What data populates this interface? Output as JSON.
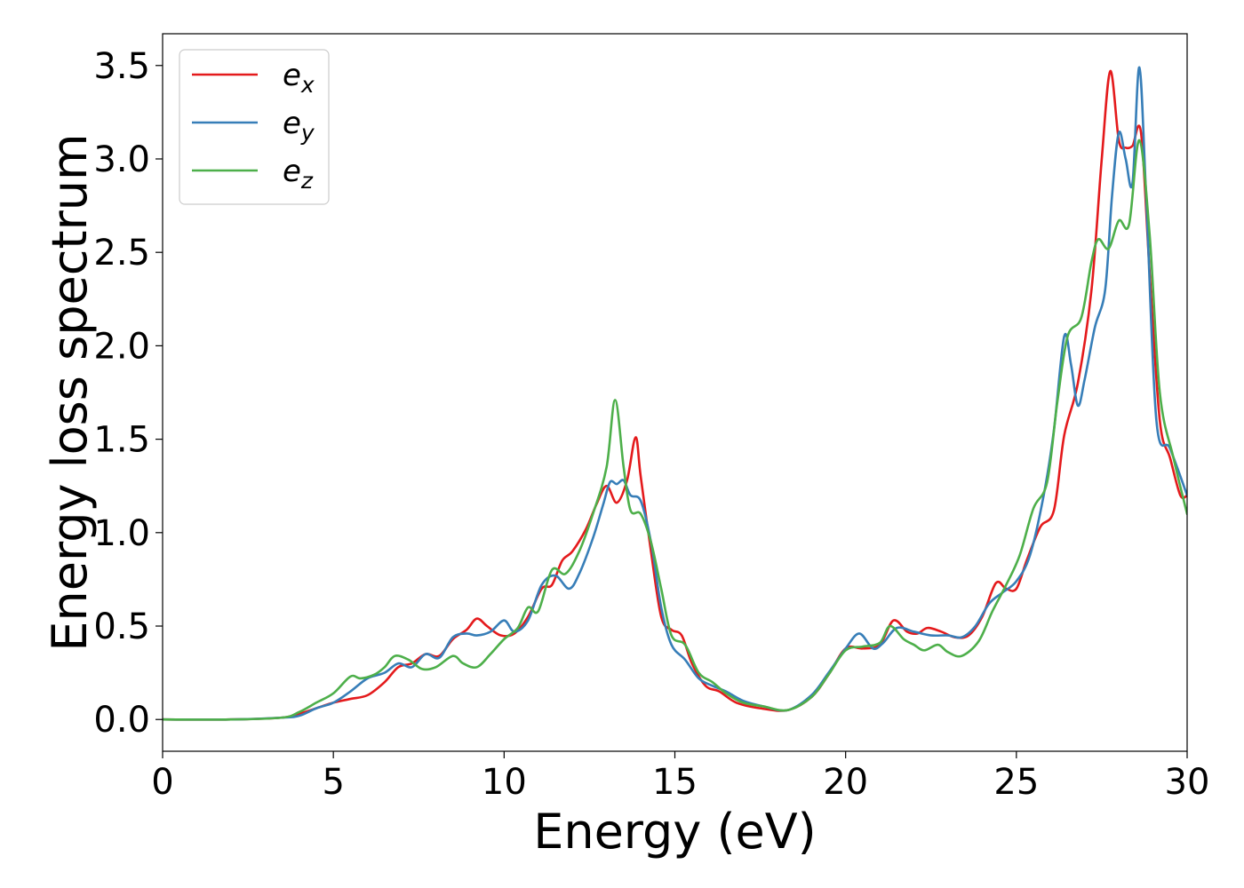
{
  "chart_data": {
    "type": "line",
    "title": "",
    "xlabel": "Energy (eV)",
    "ylabel": "Energy loss spectrum",
    "xlim": [
      0,
      30
    ],
    "ylim": [
      -0.17,
      3.67
    ],
    "xticks": [
      {
        "value": 0,
        "label": "0"
      },
      {
        "value": 5,
        "label": "5"
      },
      {
        "value": 10,
        "label": "10"
      },
      {
        "value": 15,
        "label": "15"
      },
      {
        "value": 20,
        "label": "20"
      },
      {
        "value": 25,
        "label": "25"
      },
      {
        "value": 30,
        "label": "30"
      }
    ],
    "yticks": [
      {
        "value": 0.0,
        "label": "0.0"
      },
      {
        "value": 0.5,
        "label": "0.5"
      },
      {
        "value": 1.0,
        "label": "1.0"
      },
      {
        "value": 1.5,
        "label": "1.5"
      },
      {
        "value": 2.0,
        "label": "2.0"
      },
      {
        "value": 2.5,
        "label": "2.5"
      },
      {
        "value": 3.0,
        "label": "3.0"
      },
      {
        "value": 3.5,
        "label": "3.5"
      }
    ],
    "grid": false,
    "legend_position": "top-left",
    "series": [
      {
        "name_base": "e",
        "name_sub": "x",
        "color": "#e41a1c",
        "points": [
          [
            0,
            0.0
          ],
          [
            2,
            0.0
          ],
          [
            3.5,
            0.01
          ],
          [
            4.0,
            0.03
          ],
          [
            4.5,
            0.06
          ],
          [
            5.0,
            0.09
          ],
          [
            5.5,
            0.11
          ],
          [
            6.0,
            0.13
          ],
          [
            6.5,
            0.2
          ],
          [
            6.9,
            0.28
          ],
          [
            7.3,
            0.3
          ],
          [
            7.7,
            0.35
          ],
          [
            8.1,
            0.34
          ],
          [
            8.5,
            0.43
          ],
          [
            8.9,
            0.48
          ],
          [
            9.2,
            0.54
          ],
          [
            9.5,
            0.5
          ],
          [
            9.9,
            0.45
          ],
          [
            10.3,
            0.46
          ],
          [
            10.7,
            0.55
          ],
          [
            11.1,
            0.7
          ],
          [
            11.4,
            0.72
          ],
          [
            11.7,
            0.85
          ],
          [
            12.0,
            0.9
          ],
          [
            12.4,
            1.02
          ],
          [
            12.7,
            1.15
          ],
          [
            13.0,
            1.25
          ],
          [
            13.3,
            1.16
          ],
          [
            13.6,
            1.28
          ],
          [
            13.85,
            1.51
          ],
          [
            14.0,
            1.3
          ],
          [
            14.3,
            0.9
          ],
          [
            14.6,
            0.55
          ],
          [
            14.9,
            0.48
          ],
          [
            15.2,
            0.45
          ],
          [
            15.5,
            0.3
          ],
          [
            15.9,
            0.18
          ],
          [
            16.3,
            0.15
          ],
          [
            16.8,
            0.09
          ],
          [
            17.5,
            0.06
          ],
          [
            18.3,
            0.05
          ],
          [
            19.0,
            0.12
          ],
          [
            19.5,
            0.24
          ],
          [
            20.0,
            0.38
          ],
          [
            20.5,
            0.38
          ],
          [
            21.0,
            0.4
          ],
          [
            21.4,
            0.53
          ],
          [
            21.8,
            0.47
          ],
          [
            22.1,
            0.46
          ],
          [
            22.4,
            0.49
          ],
          [
            22.8,
            0.47
          ],
          [
            23.2,
            0.44
          ],
          [
            23.6,
            0.45
          ],
          [
            24.0,
            0.55
          ],
          [
            24.4,
            0.73
          ],
          [
            24.7,
            0.7
          ],
          [
            25.0,
            0.7
          ],
          [
            25.3,
            0.85
          ],
          [
            25.7,
            1.03
          ],
          [
            26.1,
            1.12
          ],
          [
            26.4,
            1.52
          ],
          [
            26.8,
            1.8
          ],
          [
            27.2,
            2.3
          ],
          [
            27.5,
            3.0
          ],
          [
            27.75,
            3.47
          ],
          [
            28.0,
            3.1
          ],
          [
            28.2,
            3.06
          ],
          [
            28.4,
            3.07
          ],
          [
            28.65,
            3.14
          ],
          [
            28.9,
            2.4
          ],
          [
            29.2,
            1.6
          ],
          [
            29.5,
            1.4
          ],
          [
            29.8,
            1.2
          ],
          [
            30.0,
            1.2
          ]
        ]
      },
      {
        "name_base": "e",
        "name_sub": "y",
        "color": "#377eb8",
        "points": [
          [
            0,
            0.0
          ],
          [
            2,
            0.0
          ],
          [
            3.5,
            0.01
          ],
          [
            4.0,
            0.02
          ],
          [
            4.5,
            0.06
          ],
          [
            5.0,
            0.09
          ],
          [
            5.5,
            0.15
          ],
          [
            6.0,
            0.22
          ],
          [
            6.5,
            0.25
          ],
          [
            6.9,
            0.3
          ],
          [
            7.3,
            0.28
          ],
          [
            7.7,
            0.35
          ],
          [
            8.1,
            0.33
          ],
          [
            8.5,
            0.44
          ],
          [
            8.9,
            0.46
          ],
          [
            9.2,
            0.45
          ],
          [
            9.6,
            0.47
          ],
          [
            10.0,
            0.53
          ],
          [
            10.3,
            0.47
          ],
          [
            10.7,
            0.53
          ],
          [
            11.1,
            0.72
          ],
          [
            11.5,
            0.77
          ],
          [
            11.9,
            0.7
          ],
          [
            12.2,
            0.78
          ],
          [
            12.6,
            0.97
          ],
          [
            12.9,
            1.15
          ],
          [
            13.1,
            1.27
          ],
          [
            13.3,
            1.26
          ],
          [
            13.5,
            1.28
          ],
          [
            13.7,
            1.2
          ],
          [
            14.0,
            1.17
          ],
          [
            14.3,
            0.95
          ],
          [
            14.6,
            0.6
          ],
          [
            14.9,
            0.4
          ],
          [
            15.3,
            0.32
          ],
          [
            15.7,
            0.22
          ],
          [
            16.1,
            0.18
          ],
          [
            16.5,
            0.15
          ],
          [
            17.0,
            0.1
          ],
          [
            17.6,
            0.07
          ],
          [
            18.3,
            0.05
          ],
          [
            19.0,
            0.13
          ],
          [
            19.5,
            0.25
          ],
          [
            20.0,
            0.38
          ],
          [
            20.4,
            0.46
          ],
          [
            20.8,
            0.38
          ],
          [
            21.1,
            0.41
          ],
          [
            21.5,
            0.49
          ],
          [
            22.0,
            0.47
          ],
          [
            22.5,
            0.45
          ],
          [
            23.0,
            0.45
          ],
          [
            23.4,
            0.44
          ],
          [
            23.8,
            0.5
          ],
          [
            24.2,
            0.62
          ],
          [
            24.6,
            0.68
          ],
          [
            25.0,
            0.74
          ],
          [
            25.4,
            0.88
          ],
          [
            25.8,
            1.2
          ],
          [
            26.1,
            1.55
          ],
          [
            26.4,
            2.05
          ],
          [
            26.6,
            1.9
          ],
          [
            26.8,
            1.68
          ],
          [
            27.0,
            1.82
          ],
          [
            27.3,
            2.1
          ],
          [
            27.6,
            2.3
          ],
          [
            27.8,
            2.8
          ],
          [
            28.0,
            3.14
          ],
          [
            28.2,
            3.0
          ],
          [
            28.4,
            2.87
          ],
          [
            28.6,
            3.49
          ],
          [
            28.8,
            2.8
          ],
          [
            29.1,
            1.6
          ],
          [
            29.5,
            1.45
          ],
          [
            30.0,
            1.2
          ]
        ]
      },
      {
        "name_base": "e",
        "name_sub": "z",
        "color": "#4daf4a",
        "points": [
          [
            0,
            0.0
          ],
          [
            2,
            0.0
          ],
          [
            3.5,
            0.01
          ],
          [
            4.0,
            0.04
          ],
          [
            4.5,
            0.09
          ],
          [
            5.0,
            0.14
          ],
          [
            5.5,
            0.23
          ],
          [
            5.8,
            0.22
          ],
          [
            6.2,
            0.24
          ],
          [
            6.5,
            0.28
          ],
          [
            6.8,
            0.34
          ],
          [
            7.2,
            0.32
          ],
          [
            7.6,
            0.27
          ],
          [
            8.0,
            0.28
          ],
          [
            8.5,
            0.34
          ],
          [
            8.8,
            0.3
          ],
          [
            9.2,
            0.28
          ],
          [
            9.6,
            0.35
          ],
          [
            10.0,
            0.43
          ],
          [
            10.4,
            0.49
          ],
          [
            10.7,
            0.6
          ],
          [
            11.0,
            0.58
          ],
          [
            11.4,
            0.8
          ],
          [
            11.8,
            0.78
          ],
          [
            12.2,
            0.9
          ],
          [
            12.6,
            1.1
          ],
          [
            13.0,
            1.35
          ],
          [
            13.25,
            1.71
          ],
          [
            13.5,
            1.35
          ],
          [
            13.7,
            1.12
          ],
          [
            14.0,
            1.1
          ],
          [
            14.3,
            0.95
          ],
          [
            14.6,
            0.7
          ],
          [
            14.9,
            0.45
          ],
          [
            15.3,
            0.4
          ],
          [
            15.7,
            0.25
          ],
          [
            16.1,
            0.2
          ],
          [
            16.5,
            0.14
          ],
          [
            17.0,
            0.09
          ],
          [
            17.6,
            0.07
          ],
          [
            18.3,
            0.05
          ],
          [
            19.0,
            0.12
          ],
          [
            19.5,
            0.24
          ],
          [
            20.0,
            0.37
          ],
          [
            20.5,
            0.39
          ],
          [
            21.0,
            0.41
          ],
          [
            21.3,
            0.5
          ],
          [
            21.7,
            0.43
          ],
          [
            22.0,
            0.4
          ],
          [
            22.3,
            0.37
          ],
          [
            22.7,
            0.4
          ],
          [
            23.0,
            0.36
          ],
          [
            23.4,
            0.34
          ],
          [
            23.9,
            0.42
          ],
          [
            24.3,
            0.58
          ],
          [
            24.7,
            0.72
          ],
          [
            25.1,
            0.88
          ],
          [
            25.5,
            1.13
          ],
          [
            25.9,
            1.27
          ],
          [
            26.2,
            1.7
          ],
          [
            26.5,
            2.05
          ],
          [
            26.9,
            2.15
          ],
          [
            27.2,
            2.45
          ],
          [
            27.4,
            2.57
          ],
          [
            27.7,
            2.52
          ],
          [
            28.0,
            2.67
          ],
          [
            28.3,
            2.65
          ],
          [
            28.6,
            3.1
          ],
          [
            28.9,
            2.6
          ],
          [
            29.2,
            1.75
          ],
          [
            29.6,
            1.4
          ],
          [
            30.0,
            1.1
          ]
        ]
      }
    ]
  }
}
